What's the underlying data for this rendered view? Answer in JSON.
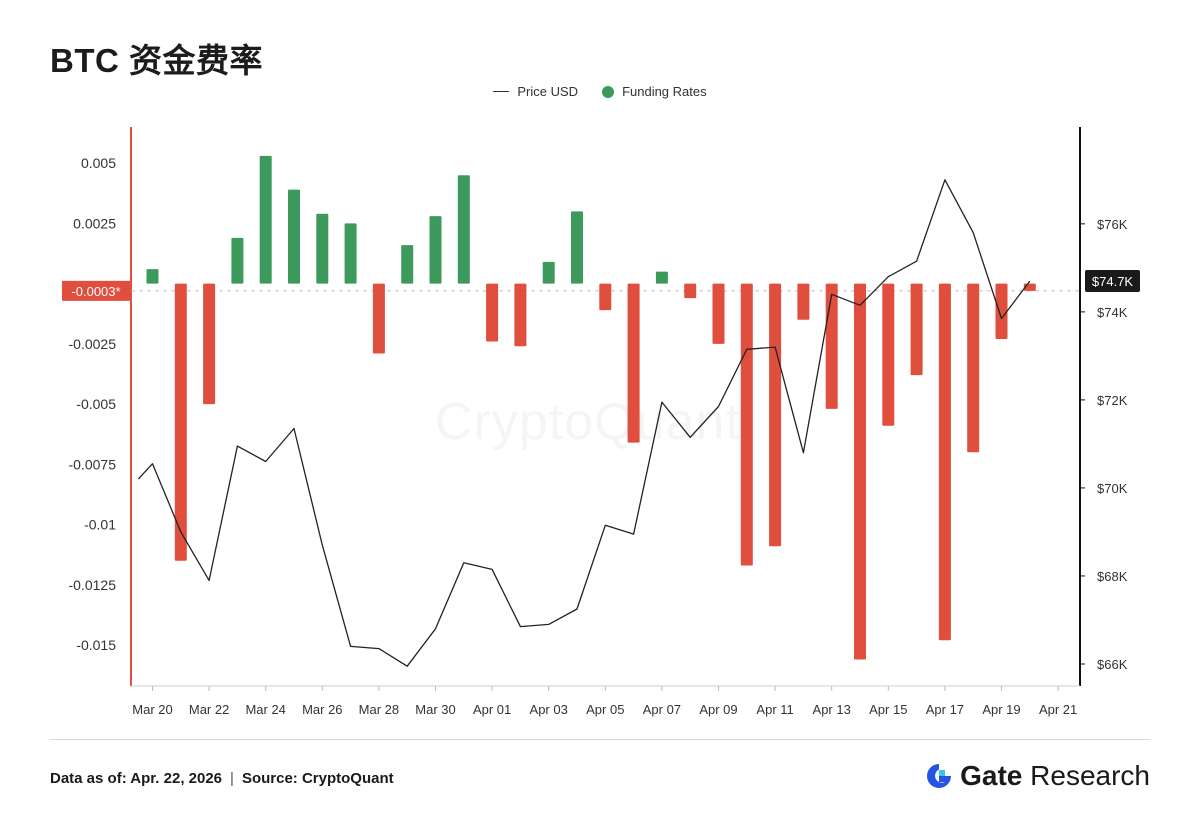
{
  "title": "BTC 资金费率",
  "legend": [
    {
      "label": "Price USD",
      "kind": "line",
      "color": "#333333"
    },
    {
      "label": "Funding Rates",
      "kind": "dot",
      "color": "#3d9a5c"
    }
  ],
  "watermark": "CryptoQuant",
  "footer": {
    "date_label": "Data as of: Apr. 22, 2026",
    "separator": "|",
    "source_label": "Source:  CryptoQuant"
  },
  "brand": {
    "name_bold": "Gate",
    "name_rest": "Research"
  },
  "colors": {
    "positive": "#3d9a5c",
    "negative": "#e04e3d",
    "left_axis": "#e04e3d",
    "right_axis": "#111111",
    "line": "#222222"
  },
  "chart_data": {
    "type": "bar",
    "title": "BTC 资金费率",
    "x": [
      "Mar 20",
      "Mar 21",
      "Mar 22",
      "Mar 23",
      "Mar 24",
      "Mar 25",
      "Mar 26",
      "Mar 27",
      "Mar 28",
      "Mar 29",
      "Mar 30",
      "Mar 31",
      "Apr 01",
      "Apr 02",
      "Apr 03",
      "Apr 04",
      "Apr 05",
      "Apr 06",
      "Apr 07",
      "Apr 08",
      "Apr 09",
      "Apr 10",
      "Apr 11",
      "Apr 12",
      "Apr 13",
      "Apr 14",
      "Apr 15",
      "Apr 16",
      "Apr 17",
      "Apr 18",
      "Apr 19",
      "Apr 20"
    ],
    "x_tick_labels": [
      "Mar 20",
      "Mar 22",
      "Mar 24",
      "Mar 26",
      "Mar 28",
      "Mar 30",
      "Apr 01",
      "Apr 03",
      "Apr 05",
      "Apr 07",
      "Apr 09",
      "Apr 11",
      "Apr 13",
      "Apr 15",
      "Apr 17",
      "Apr 19",
      "Apr 21"
    ],
    "series": [
      {
        "name": "Funding Rates",
        "type": "bar",
        "axis": "left",
        "values": [
          0.0006,
          -0.0115,
          -0.005,
          0.0019,
          0.0053,
          0.0039,
          0.0029,
          0.0025,
          -0.0029,
          0.0016,
          0.0028,
          0.0045,
          -0.0024,
          -0.0026,
          0.0009,
          0.003,
          -0.0011,
          -0.0066,
          0.0005,
          -0.0006,
          -0.0025,
          -0.0117,
          -0.0109,
          -0.0015,
          -0.0052,
          -0.0156,
          -0.0059,
          -0.0038,
          -0.0148,
          -0.007,
          -0.0023,
          -0.0003
        ]
      },
      {
        "name": "Price USD",
        "type": "line",
        "axis": "right",
        "x": [
          19.5,
          20,
          21,
          22,
          23,
          24,
          25,
          26,
          27,
          28,
          29,
          30,
          31,
          32,
          33,
          34,
          35,
          36,
          37,
          38,
          39,
          40,
          41,
          42,
          43,
          44,
          45,
          46,
          47,
          48,
          49,
          50,
          51
        ],
        "values": [
          70.2,
          70.55,
          69.0,
          67.9,
          70.95,
          70.6,
          71.35,
          68.7,
          66.4,
          66.35,
          65.95,
          66.8,
          68.3,
          68.15,
          66.85,
          66.9,
          67.25,
          69.15,
          68.95,
          71.95,
          71.15,
          71.85,
          73.15,
          73.2,
          70.8,
          74.4,
          74.15,
          74.8,
          75.15,
          77.0,
          75.8,
          73.85,
          74.7
        ]
      }
    ],
    "left_axis": {
      "ticks": [
        0.005,
        0.0025,
        -0.0025,
        -0.005,
        -0.0075,
        -0.01,
        -0.0125,
        -0.015
      ],
      "tick_labels": [
        "0.005",
        "0.0025",
        "-0.0025",
        "-0.005",
        "-0.0075",
        "-0.01",
        "-0.0125",
        "-0.015"
      ],
      "ylim": [
        -0.0167,
        0.0065
      ]
    },
    "right_axis": {
      "ticks": [
        76,
        74,
        72,
        70,
        68,
        66
      ],
      "tick_labels": [
        "$76K",
        "$74K",
        "$72K",
        "$70K",
        "$68K",
        "$66K"
      ],
      "ylim": [
        65.5,
        78.2
      ]
    },
    "markers": {
      "left_value_label": "-0.0003*",
      "left_value": -0.0003,
      "right_value_label": "$74.7K",
      "right_value": 74.7
    },
    "legend_position": "top-center",
    "grid": false
  }
}
